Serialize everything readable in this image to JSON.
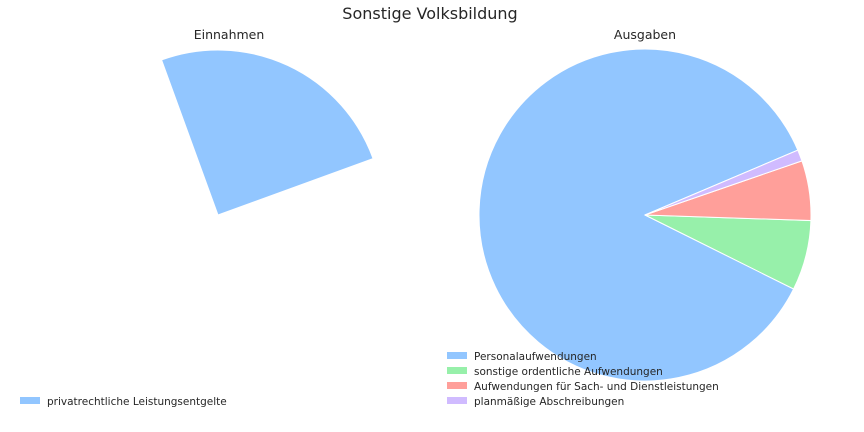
{
  "title": "Sonstige Volksbildung",
  "chart_data": [
    {
      "type": "pie",
      "title": "Einnahmen",
      "colors": [
        "#92c6ff"
      ],
      "slices": [
        {
          "label": "privatrechtliche Leistungsentgelte",
          "value": 25
        }
      ],
      "note_start_angle_deg": 110,
      "counterclockwise": false,
      "legend_position": "lower-left"
    },
    {
      "type": "pie",
      "title": "Ausgaben",
      "colors": [
        "#92c6ff",
        "#97f0aa",
        "#ff9f9a",
        "#d0bbff"
      ],
      "slices": [
        {
          "label": "Personalaufwendungen",
          "value": 86.0
        },
        {
          "label": "sonstige ordentliche Aufwendungen",
          "value": 6.8
        },
        {
          "label": "Aufwendungen für Sach- und Dienstleistungen",
          "value": 5.8
        },
        {
          "label": "planmäßige Abschreibungen",
          "value": 1.1
        }
      ],
      "counterclockwise": true,
      "legend_position": "lower-left"
    }
  ]
}
